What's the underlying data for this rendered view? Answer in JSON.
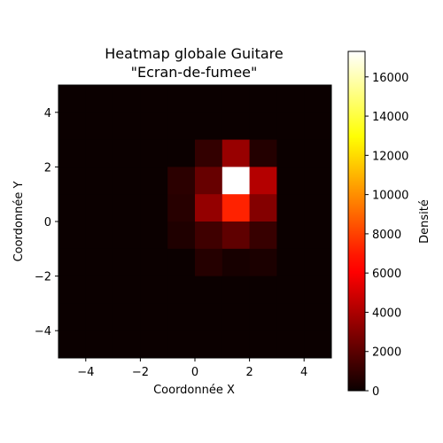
{
  "chart_data": {
    "type": "heatmap",
    "title": [
      "Heatmap globale Guitare",
      "\"Ecran-de-fumee\""
    ],
    "xlabel": "Coordonnée X",
    "ylabel": "Coordonnée Y",
    "colorbar_label": "Densité",
    "xlim": [
      -5,
      5
    ],
    "ylim": [
      -5,
      5
    ],
    "x_ticks": [
      -4,
      -2,
      0,
      2,
      4
    ],
    "y_ticks": [
      -4,
      -2,
      0,
      2,
      4
    ],
    "x_edges": [
      -5,
      -4,
      -3,
      -2,
      -1,
      0,
      1,
      2,
      3,
      4,
      5
    ],
    "y_edges": [
      -5,
      -4,
      -3,
      -2,
      -1,
      0,
      1,
      2,
      3,
      4,
      5
    ],
    "colormap": "hot",
    "vmin": 0,
    "vmax": 17300,
    "colorbar_ticks": [
      0,
      2000,
      4000,
      6000,
      8000,
      10000,
      12000,
      14000,
      16000
    ],
    "z_rows_top_to_bottom": [
      [
        0,
        0,
        0,
        0,
        0,
        0,
        0,
        0,
        0,
        0
      ],
      [
        0,
        0,
        0,
        0,
        0,
        0,
        0,
        0,
        0,
        0
      ],
      [
        0,
        0,
        0,
        0,
        0,
        1000,
        3500,
        600,
        0,
        0
      ],
      [
        0,
        0,
        0,
        0,
        800,
        2300,
        17300,
        4200,
        0,
        0
      ],
      [
        0,
        0,
        0,
        0,
        700,
        3400,
        7200,
        3000,
        0,
        0
      ],
      [
        0,
        0,
        0,
        0,
        500,
        1300,
        2100,
        1100,
        0,
        0
      ],
      [
        0,
        0,
        0,
        0,
        0,
        650,
        300,
        400,
        0,
        0
      ],
      [
        0,
        0,
        0,
        0,
        0,
        0,
        0,
        0,
        0,
        0
      ],
      [
        0,
        0,
        0,
        0,
        0,
        0,
        0,
        0,
        0,
        0
      ],
      [
        0,
        0,
        0,
        0,
        0,
        0,
        0,
        0,
        0,
        0
      ]
    ]
  }
}
